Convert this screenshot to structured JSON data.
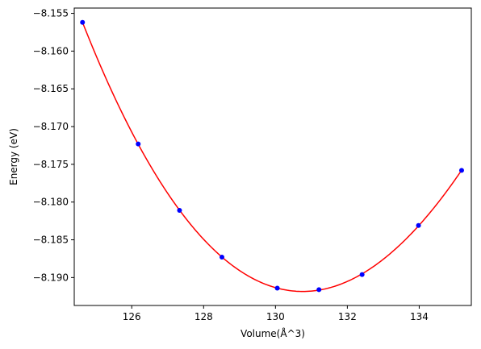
{
  "chart_data": {
    "type": "scatter",
    "title": "",
    "xlabel": "Volume(Å^3)",
    "ylabel": "Energy (eV)",
    "xlim": [
      124.4,
      135.45
    ],
    "ylim": [
      -8.1937,
      -8.1543
    ],
    "x_ticks": [
      126,
      128,
      130,
      132,
      134
    ],
    "x_tick_labels": [
      "126",
      "128",
      "130",
      "132",
      "134"
    ],
    "y_ticks": [
      -8.155,
      -8.16,
      -8.165,
      -8.17,
      -8.175,
      -8.18,
      -8.185,
      -8.19
    ],
    "y_tick_labels": [
      "−8.155",
      "−8.160",
      "−8.165",
      "−8.170",
      "−8.175",
      "−8.180",
      "−8.185",
      "−8.190"
    ],
    "grid": false,
    "colors": {
      "points": "#0000ff",
      "fit": "#ff0000"
    },
    "series": [
      {
        "kind": "points",
        "x": [
          124.63,
          126.18,
          127.33,
          128.51,
          130.05,
          131.21,
          132.41,
          133.98,
          135.18
        ],
        "y": [
          -8.1562,
          -8.1723,
          -8.1811,
          -8.1873,
          -8.1914,
          -8.1916,
          -8.1896,
          -8.1831,
          -8.1758
        ]
      },
      {
        "kind": "fit-curve",
        "x": [
          124.63,
          125.0,
          125.5,
          126.0,
          126.5,
          127.0,
          127.5,
          128.0,
          128.5,
          129.0,
          129.5,
          130.0,
          130.5,
          130.75,
          131.0,
          131.5,
          132.0,
          132.5,
          133.0,
          133.5,
          134.0,
          134.5,
          135.0,
          135.18
        ],
        "y": [
          -8.1562,
          -8.1604,
          -8.1656,
          -8.1705,
          -8.1751,
          -8.1791,
          -8.1826,
          -8.1857,
          -8.1881,
          -8.1899,
          -8.1911,
          -8.1917,
          -8.1919,
          -8.1919,
          -8.1918,
          -8.1912,
          -8.1901,
          -8.1884,
          -8.1862,
          -8.1835,
          -8.1802,
          -8.1765,
          -8.1724,
          -8.1758
        ]
      }
    ]
  }
}
